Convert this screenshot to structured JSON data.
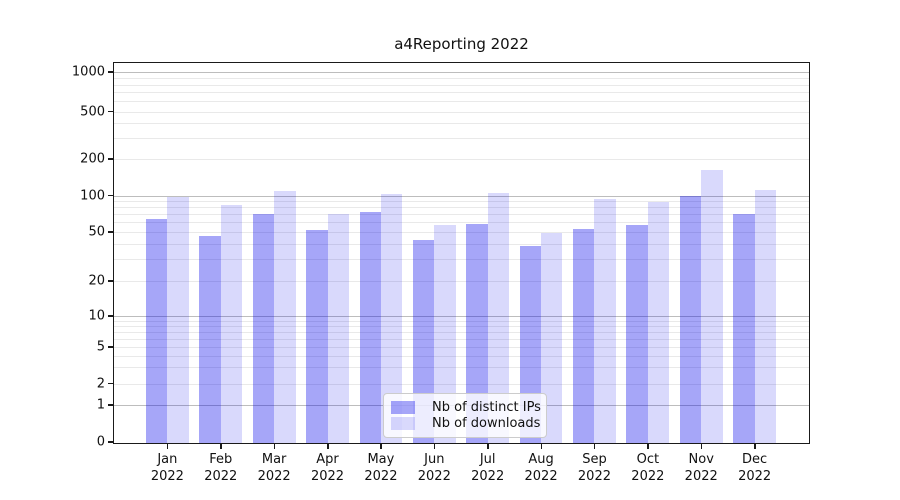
{
  "title": "a4Reporting 2022",
  "chart_data": {
    "type": "bar",
    "title": "a4Reporting 2022",
    "months": [
      "Jan",
      "Feb",
      "Mar",
      "Apr",
      "May",
      "Jun",
      "Jul",
      "Aug",
      "Sep",
      "Oct",
      "Nov",
      "Dec"
    ],
    "year_label": "2022",
    "categories": [
      "Jan 2022",
      "Feb 2022",
      "Mar 2022",
      "Apr 2022",
      "May 2022",
      "Jun 2022",
      "Jul 2022",
      "Aug 2022",
      "Sep 2022",
      "Oct 2022",
      "Nov 2022",
      "Dec 2022"
    ],
    "series": [
      {
        "name": "Nb of distinct IPs",
        "color": "rgba(0,0,235,0.35)",
        "values": [
          66,
          47,
          72,
          53,
          75,
          44,
          59,
          39,
          54,
          58,
          101,
          72
        ]
      },
      {
        "name": "Nb of downloads",
        "color": "rgba(0,0,235,0.15)",
        "values": [
          100,
          86,
          111,
          72,
          105,
          58,
          107,
          50,
          96,
          91,
          165,
          113
        ]
      }
    ],
    "xlabel": "",
    "ylabel": "",
    "yscale": "symlog",
    "ylim": [
      0,
      1260
    ],
    "y_ticks": [
      0,
      1,
      2,
      5,
      10,
      20,
      50,
      100,
      200,
      500,
      1000
    ],
    "y_tick_labels": [
      "0",
      "1",
      "2",
      "5",
      "10",
      "20",
      "50",
      "100",
      "200",
      "500",
      "1000"
    ],
    "y_grid_major": [
      1,
      10,
      100,
      1000
    ],
    "y_grid_minor": [
      2,
      3,
      4,
      5,
      6,
      7,
      8,
      9,
      20,
      30,
      40,
      50,
      60,
      70,
      80,
      90,
      200,
      300,
      400,
      500,
      600,
      700,
      800,
      900
    ],
    "grid": "on",
    "legend_position": "lower center"
  },
  "colors": {
    "major_grid": "#bdbdbd",
    "minor_grid": "#e9e9e9",
    "spine": "#1a1a1a",
    "legend_border": "#cccccc"
  }
}
